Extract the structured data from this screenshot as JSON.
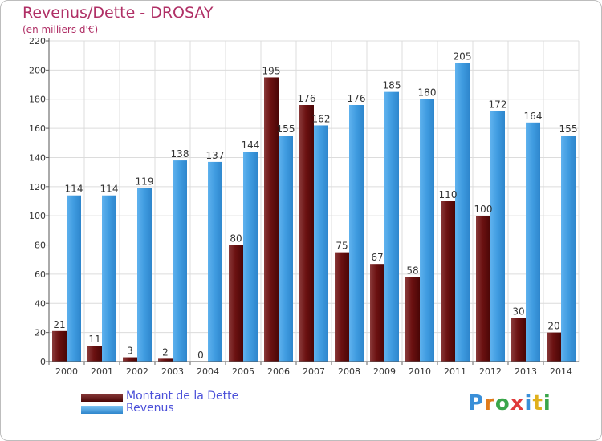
{
  "chart_data": {
    "type": "bar",
    "title": "Revenus/Dette - DROSAY",
    "subtitle": "(en milliers d'€)",
    "categories": [
      "2000",
      "2001",
      "2002",
      "2003",
      "2004",
      "2005",
      "2006",
      "2007",
      "2008",
      "2009",
      "2010",
      "2011",
      "2012",
      "2013",
      "2014"
    ],
    "series": [
      {
        "name": "Montant de la Dette",
        "color": "#6b1111",
        "values": [
          21,
          11,
          3,
          2,
          0,
          80,
          195,
          176,
          75,
          67,
          58,
          110,
          100,
          30,
          20
        ]
      },
      {
        "name": "Revenus",
        "color": "#3f9be0",
        "values": [
          114,
          114,
          119,
          138,
          137,
          144,
          155,
          162,
          176,
          185,
          180,
          205,
          172,
          164,
          155
        ]
      }
    ],
    "ylim": [
      0,
      220
    ],
    "yticks": [
      0,
      20,
      40,
      60,
      80,
      100,
      120,
      140,
      160,
      180,
      200,
      220
    ],
    "grid": true,
    "legend_position": "bottom-left"
  },
  "logo": {
    "text": "Proxiti"
  }
}
